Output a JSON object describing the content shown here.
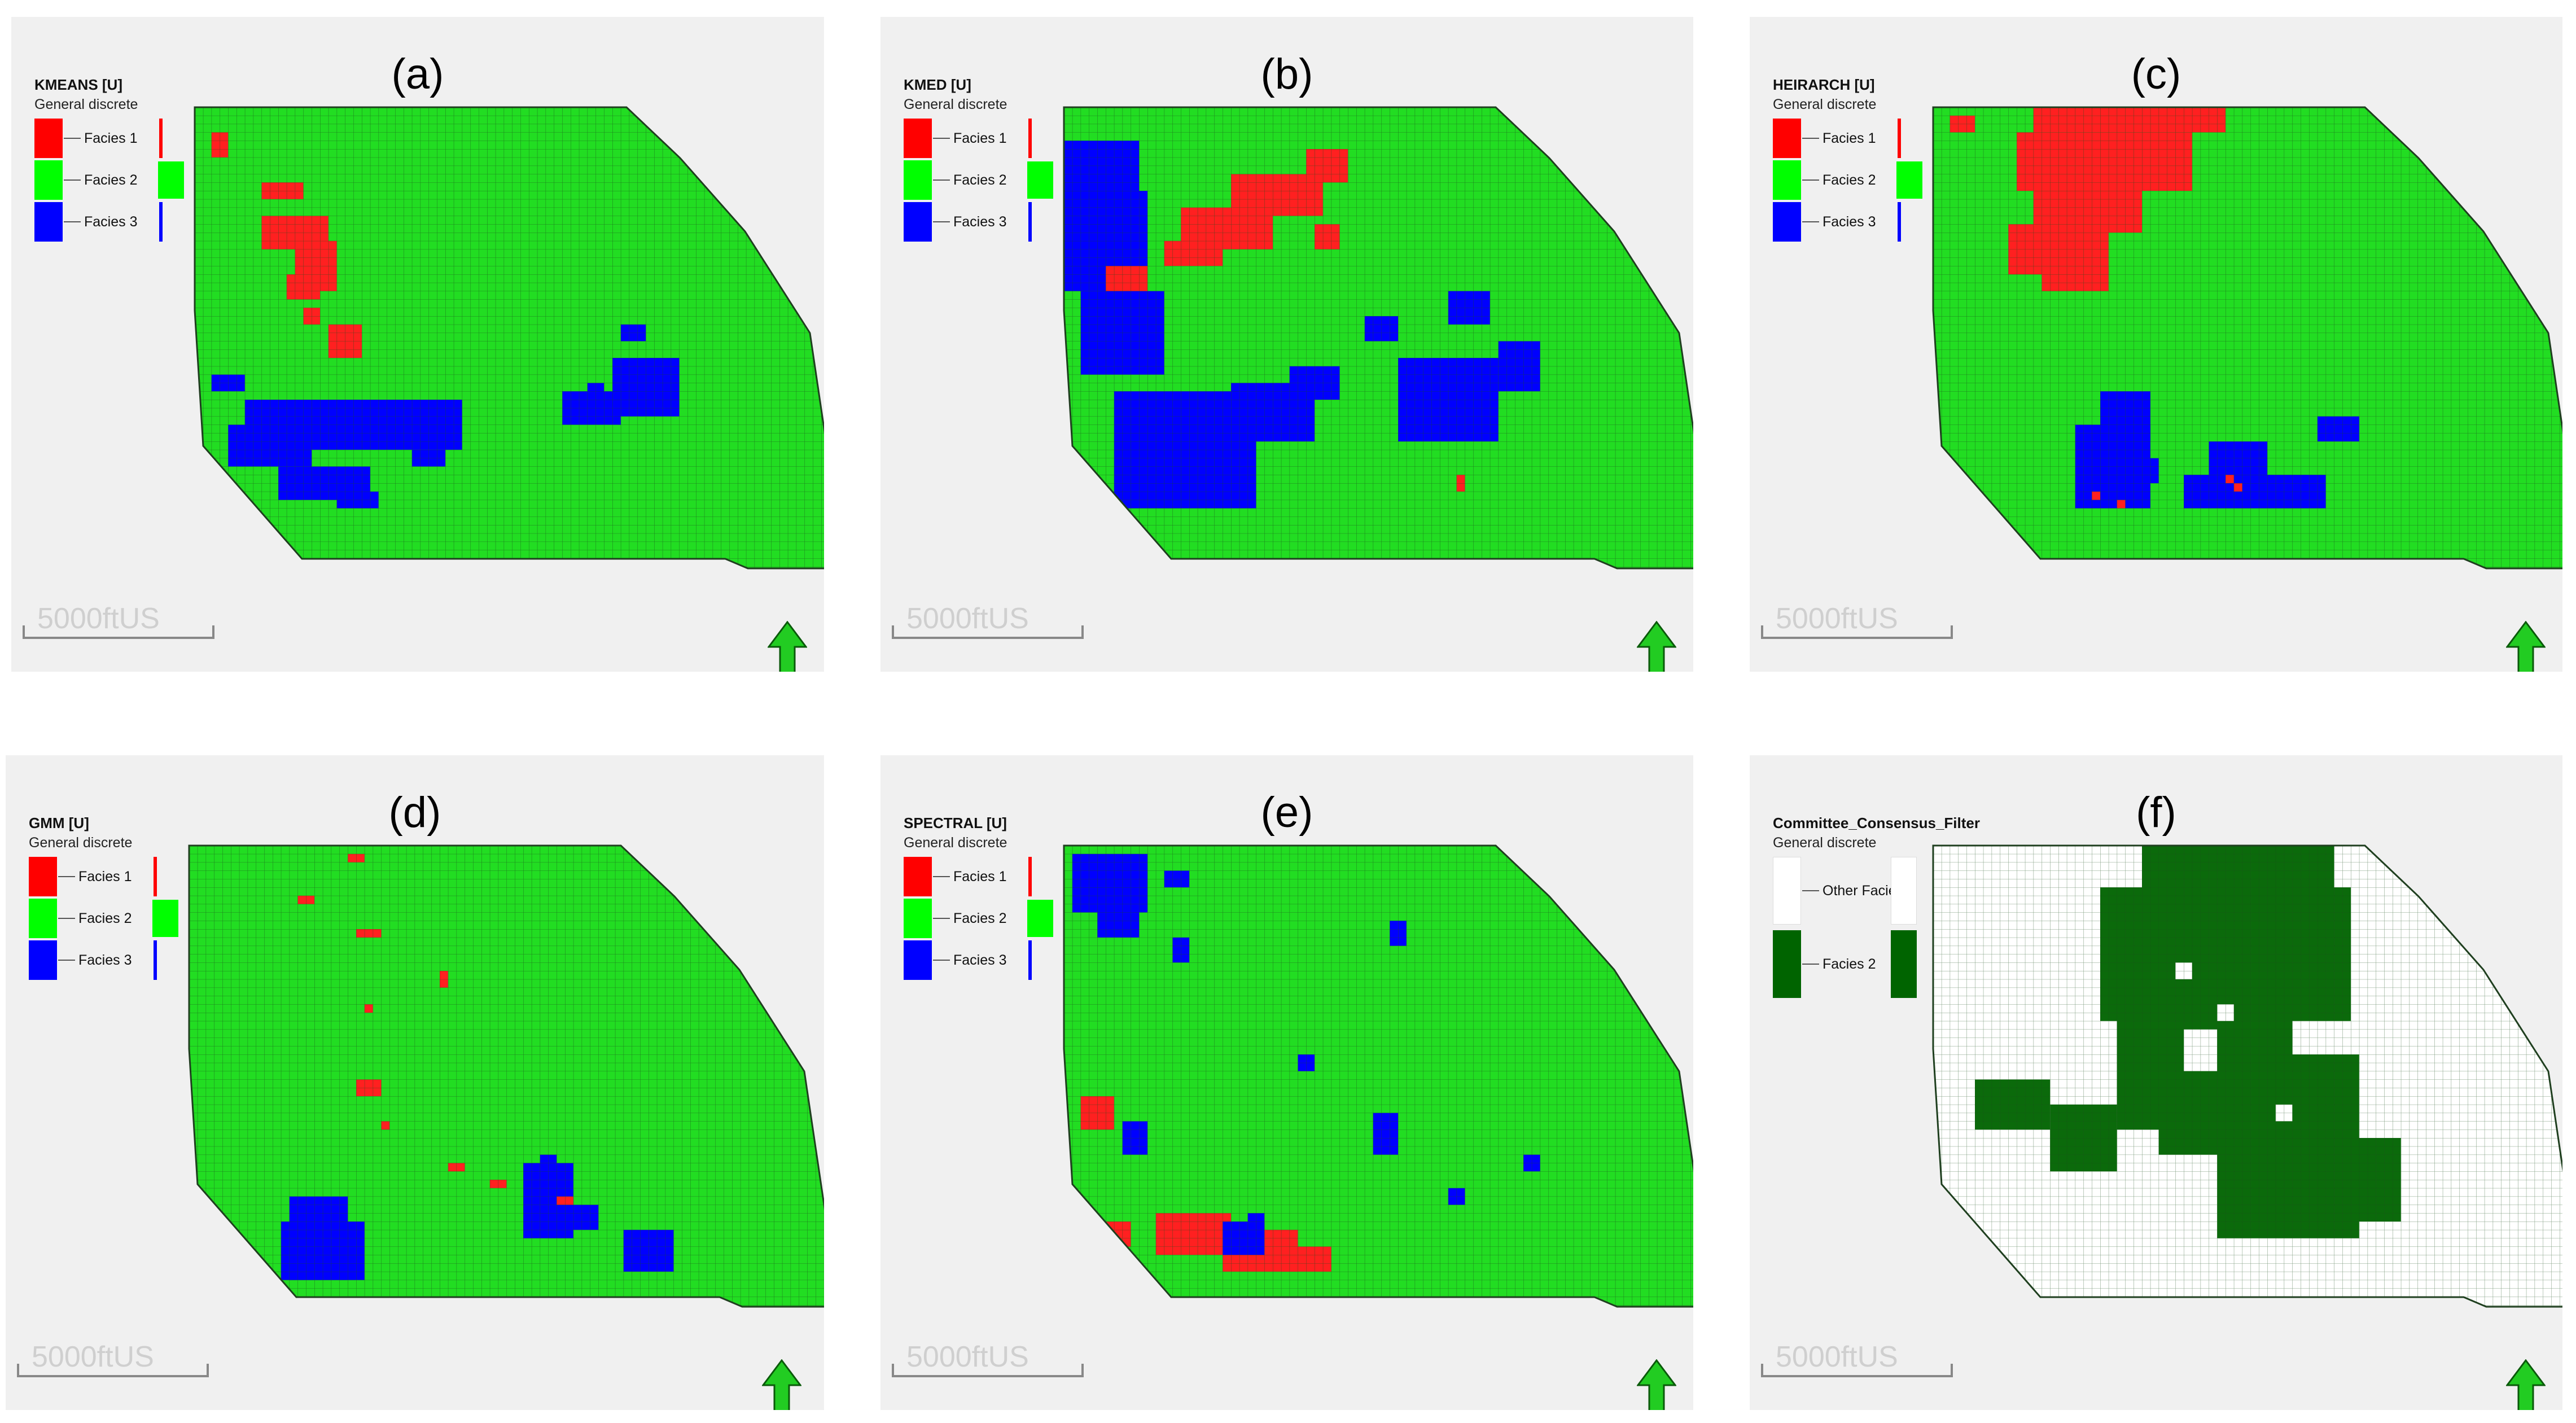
{
  "panels": [
    {
      "label": "(a)",
      "legend_name": "KMEANS [U]",
      "legend_sub": "General discrete",
      "legend_items": [
        {
          "label": "Facies 1",
          "color": "#ff0000"
        },
        {
          "label": "Facies 2",
          "color": "#00ff00"
        },
        {
          "label": "Facies 3",
          "color": "#0000ff"
        }
      ],
      "scale_label": "5000ftUS",
      "base_color": "#22dd22",
      "patches": [
        {
          "color": "#ff2020",
          "r": [
            [
              3,
              2,
              3,
              2
            ],
            [
              9,
              8,
              2,
              5
            ],
            [
              13,
              8,
              4,
              8
            ],
            [
              16,
              12,
              5,
              5
            ],
            [
              20,
              11,
              3,
              4
            ],
            [
              19,
              14,
              3,
              3
            ],
            [
              26,
              16,
              4,
              4
            ],
            [
              24,
              13,
              2,
              2
            ]
          ]
        },
        {
          "color": "#0000ff",
          "r": [
            [
              35,
              6,
              6,
              26
            ],
            [
              38,
              4,
              5,
              10
            ],
            [
              43,
              10,
              4,
              11
            ],
            [
              32,
              2,
              2,
              4
            ],
            [
              41,
              26,
              2,
              4
            ],
            [
              46,
              17,
              2,
              5
            ]
          ]
        },
        {
          "color": "#0000ff",
          "r": [
            [
              30,
              50,
              7,
              8
            ],
            [
              34,
              44,
              4,
              7
            ],
            [
              26,
              51,
              2,
              3
            ],
            [
              33,
              47,
              3,
              2
            ]
          ]
        }
      ]
    },
    {
      "label": "(b)",
      "legend_name": "KMED [U]",
      "legend_sub": "General discrete",
      "legend_items": [
        {
          "label": "Facies 1",
          "color": "#ff0000"
        },
        {
          "label": "Facies 2",
          "color": "#00ff00"
        },
        {
          "label": "Facies 3",
          "color": "#0000ff"
        }
      ],
      "scale_label": "5000ftUS",
      "base_color": "#22dd22",
      "patches": [
        {
          "color": "#0000ff",
          "r": [
            [
              4,
              0,
              18,
              9
            ],
            [
              10,
              4,
              12,
              6
            ],
            [
              22,
              2,
              10,
              10
            ],
            [
              34,
              6,
              14,
              17
            ],
            [
              33,
              20,
              7,
              10
            ],
            [
              31,
              27,
              4,
              6
            ],
            [
              30,
              40,
              10,
              12
            ],
            [
              28,
              52,
              6,
              5
            ],
            [
              22,
              46,
              4,
              5
            ],
            [
              25,
              36,
              3,
              4
            ]
          ]
        },
        {
          "color": "#ff2020",
          "r": [
            [
              8,
              20,
              5,
              11
            ],
            [
              12,
              14,
              5,
              11
            ],
            [
              16,
              12,
              3,
              7
            ],
            [
              5,
              29,
              4,
              5
            ],
            [
              19,
              5,
              3,
              5
            ],
            [
              14,
              30,
              3,
              3
            ],
            [
              44,
              47,
              2,
              1
            ]
          ]
        }
      ]
    },
    {
      "label": "(c)",
      "legend_name": "HEIRARCH [U]",
      "legend_sub": "General discrete",
      "legend_items": [
        {
          "label": "Facies 1",
          "color": "#ff0000"
        },
        {
          "label": "Facies 2",
          "color": "#00ff00"
        },
        {
          "label": "Facies 3",
          "color": "#0000ff"
        }
      ],
      "scale_label": "5000ftUS",
      "base_color": "#22dd22",
      "patches": [
        {
          "color": "#ff2020",
          "r": [
            [
              0,
              12,
              3,
              23
            ],
            [
              3,
              10,
              7,
              21
            ],
            [
              10,
              12,
              5,
              13
            ],
            [
              14,
              9,
              6,
              12
            ],
            [
              19,
              13,
              3,
              8
            ],
            [
              1,
              2,
              2,
              3
            ]
          ]
        },
        {
          "color": "#0000ff",
          "r": [
            [
              38,
              17,
              10,
              9
            ],
            [
              34,
              20,
              6,
              6
            ],
            [
              44,
              30,
              4,
              17
            ],
            [
              40,
              33,
              7,
              7
            ],
            [
              37,
              46,
              3,
              5
            ],
            [
              42,
              24,
              3,
              3
            ]
          ]
        },
        {
          "color": "#ff2020",
          "r": [
            [
              46,
              19,
              1,
              1
            ],
            [
              47,
              22,
              1,
              1
            ],
            [
              44,
              35,
              1,
              1
            ],
            [
              45,
              36,
              1,
              1
            ]
          ]
        }
      ]
    },
    {
      "label": "(d)",
      "legend_name": "GMM [U]",
      "legend_sub": "General discrete",
      "legend_items": [
        {
          "label": "Facies 1",
          "color": "#ff0000"
        },
        {
          "label": "Facies 2",
          "color": "#00ff00"
        },
        {
          "label": "Facies 3",
          "color": "#0000ff"
        }
      ],
      "scale_label": "5000ftUS",
      "base_color": "#22dd22",
      "patches": [
        {
          "color": "#0000ff",
          "r": [
            [
              42,
              12,
              10,
              7
            ],
            [
              45,
              11,
              7,
              10
            ],
            [
              38,
              40,
              9,
              6
            ],
            [
              43,
              45,
              3,
              4
            ],
            [
              46,
              52,
              5,
              6
            ],
            [
              37,
              42,
              2,
              2
            ]
          ]
        },
        {
          "color": "#ff2020",
          "r": [
            [
              1,
              19,
              1,
              2
            ],
            [
              6,
              13,
              1,
              2
            ],
            [
              10,
              20,
              1,
              3
            ],
            [
              28,
              20,
              2,
              3
            ],
            [
              38,
              31,
              1,
              2
            ],
            [
              40,
              36,
              1,
              2
            ],
            [
              15,
              30,
              2,
              1
            ],
            [
              42,
              44,
              1,
              2
            ],
            [
              19,
              21,
              1,
              1
            ],
            [
              33,
              23,
              1,
              1
            ]
          ]
        }
      ]
    },
    {
      "label": "(e)",
      "legend_name": "SPECTRAL [U]",
      "legend_sub": "General discrete",
      "legend_items": [
        {
          "label": "Facies 1",
          "color": "#ff0000"
        },
        {
          "label": "Facies 2",
          "color": "#00ff00"
        },
        {
          "label": "Facies 3",
          "color": "#0000ff"
        }
      ],
      "scale_label": "5000ftUS",
      "base_color": "#22dd22",
      "patches": [
        {
          "color": "#0000ff",
          "r": [
            [
              1,
              1,
              7,
              9
            ],
            [
              6,
              4,
              5,
              5
            ],
            [
              3,
              12,
              2,
              3
            ],
            [
              9,
              39,
              3,
              2
            ],
            [
              33,
              7,
              4,
              3
            ],
            [
              32,
              37,
              5,
              3
            ],
            [
              37,
              55,
              2,
              2
            ],
            [
              11,
              13,
              3,
              2
            ],
            [
              25,
              28,
              2,
              2
            ],
            [
              41,
              46,
              2,
              2
            ]
          ]
        },
        {
          "color": "#ff2020",
          "r": [
            [
              30,
              2,
              4,
              4
            ],
            [
              44,
              11,
              5,
              9
            ],
            [
              46,
              19,
              5,
              9
            ],
            [
              48,
              26,
              3,
              6
            ],
            [
              45,
              5,
              3,
              3
            ]
          ]
        },
        {
          "color": "#0000ff",
          "r": [
            [
              45,
              19,
              4,
              5
            ],
            [
              44,
              22,
              2,
              2
            ]
          ]
        }
      ]
    },
    {
      "label": "(f)",
      "legend_name": "Committee_Consensus_Filter",
      "legend_sub": "General discrete",
      "legend_items": [
        {
          "label": "Other Facies",
          "color": "#ffffff"
        },
        {
          "label": "Facies 2",
          "color": "#006400"
        }
      ],
      "scale_label": "5000ftUS",
      "base_color": "#ffffff",
      "patches": [
        {
          "color": "#0b6a0b",
          "r": [
            [
              0,
              25,
              12,
              23
            ],
            [
              5,
              20,
              16,
              30
            ],
            [
              18,
              22,
              16,
              21
            ],
            [
              25,
              34,
              22,
              17
            ],
            [
              10,
              24,
              6,
              4
            ],
            [
              28,
              5,
              6,
              9
            ],
            [
              31,
              14,
              8,
              8
            ],
            [
              28,
              27,
              9,
              9
            ],
            [
              35,
              44,
              10,
              12
            ],
            [
              22,
              37,
              6,
              6
            ]
          ]
        },
        {
          "color": "#ffffff",
          "r": [
            [
              26,
              16,
              3,
              4
            ],
            [
              22,
              30,
              5,
              4
            ],
            [
              40,
              26,
              6,
              5
            ],
            [
              14,
              29,
              2,
              2
            ],
            [
              19,
              34,
              2,
              2
            ],
            [
              31,
              41,
              2,
              2
            ]
          ]
        }
      ]
    }
  ]
}
